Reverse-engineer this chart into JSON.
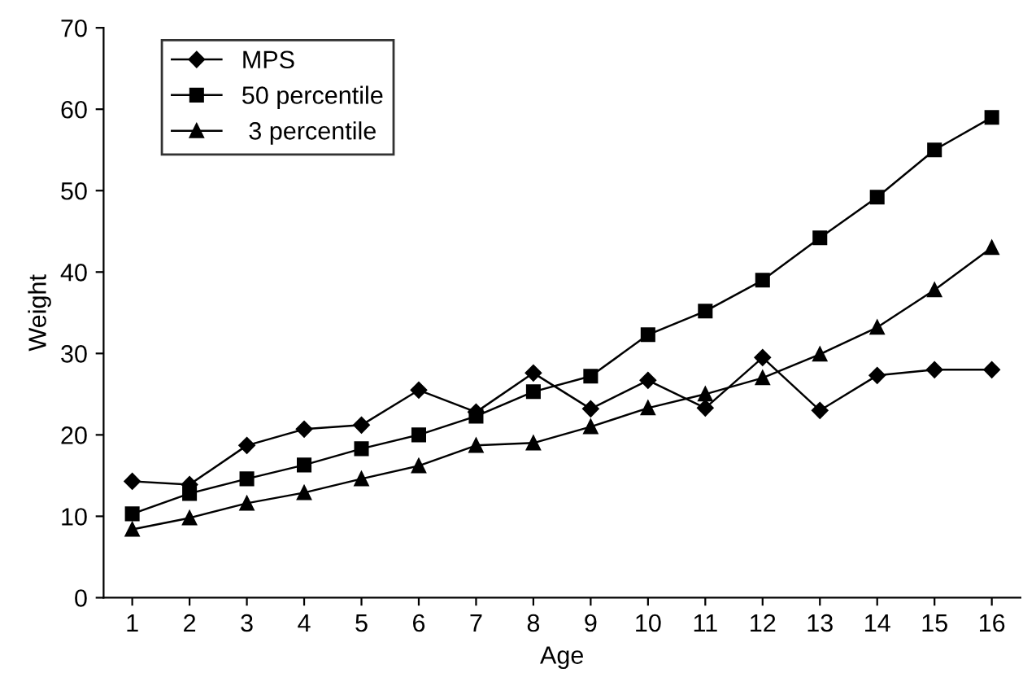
{
  "chart_data": {
    "type": "line",
    "xlabel": "Age",
    "ylabel": "Weight",
    "categories": [
      "1",
      "2",
      "3",
      "4",
      "5",
      "6",
      "7",
      "8",
      "9",
      "10",
      "11",
      "12",
      "13",
      "14",
      "15",
      "16"
    ],
    "series": [
      {
        "name": "MPS",
        "color": "#000000",
        "marker": "diamond",
        "values": [
          14.3,
          13.9,
          18.7,
          20.7,
          21.2,
          25.5,
          22.8,
          27.6,
          23.2,
          26.7,
          23.3,
          29.5,
          23,
          27.3,
          28,
          28
        ]
      },
      {
        "name": "50 percentile",
        "color": "#000000",
        "marker": "square",
        "values": [
          10.3,
          12.8,
          14.6,
          16.3,
          18.3,
          20,
          22.3,
          25.3,
          27.2,
          32.3,
          35.2,
          39,
          44.2,
          49.2,
          55,
          59
        ]
      },
      {
        "name": " 3 percentile",
        "color": "#000000",
        "marker": "triangle",
        "values": [
          8.4,
          9.8,
          11.6,
          12.9,
          14.6,
          16.2,
          18.7,
          19,
          21,
          23.3,
          25,
          27,
          29.9,
          33.2,
          37.8,
          43
        ]
      }
    ],
    "ylim": [
      0,
      70
    ],
    "yticks": [
      0,
      10,
      20,
      30,
      40,
      50,
      60,
      70
    ],
    "grid": false,
    "legend": "top left",
    "line_style": "solid"
  }
}
